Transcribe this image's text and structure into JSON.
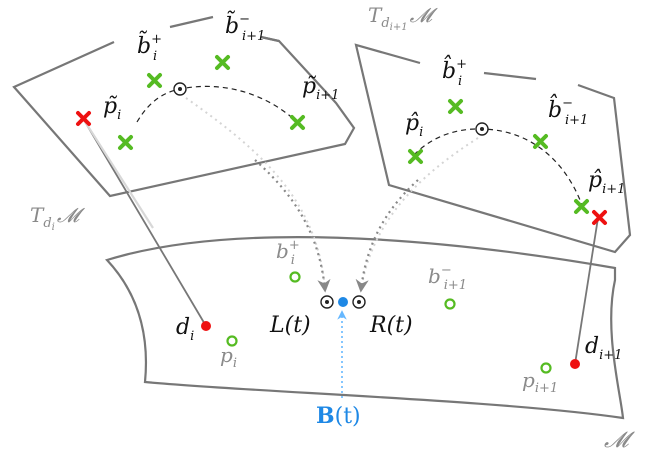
{
  "labels": {
    "b_tilde_plus": {
      "base": "b̃",
      "sub": "i",
      "sup": "+"
    },
    "b_tilde_minus": {
      "base": "b̃",
      "sub": "i+1",
      "sup": "−"
    },
    "p_tilde_i": {
      "base": "p̃",
      "sub": "i"
    },
    "p_tilde_i1": {
      "base": "p̃",
      "sub": "i+1"
    },
    "tangent_left": {
      "T": "T",
      "sub_d": "d",
      "sub_i": "i",
      "M": "𝓜"
    },
    "tangent_right": {
      "T": "T",
      "sub_d": "d",
      "sub_i": "i+1",
      "M": "𝓜"
    },
    "b_hat_plus": {
      "base": "b̂",
      "sub": "i",
      "sup": "+"
    },
    "b_hat_minus": {
      "base": "b̂",
      "sub": "i+1",
      "sup": "−"
    },
    "p_hat_i": {
      "base": "p̂",
      "sub": "i"
    },
    "p_hat_i1": {
      "base": "p̂",
      "sub": "i+1"
    },
    "b_plus": {
      "base": "b",
      "sub": "i",
      "sup": "+"
    },
    "b_minus": {
      "base": "b",
      "sub": "i+1",
      "sup": "−"
    },
    "d_i": {
      "base": "d",
      "sub": "i"
    },
    "d_i1": {
      "base": "d",
      "sub": "i+1"
    },
    "p_i": {
      "base": "p",
      "sub": "i"
    },
    "p_i1": {
      "base": "p",
      "sub": "i+1"
    },
    "L": "L(t)",
    "R": "R(t)",
    "B": {
      "bold": "B",
      "rest": "(t)"
    },
    "manifold": "𝓜"
  },
  "colors": {
    "frame": "#777777",
    "green": "#55bb22",
    "red": "#ee1111",
    "blue": "#1e88e5",
    "gray_text": "#8a8a8a",
    "dotted_gray": "#888888",
    "light_gray": "#c8c8c8",
    "light_blue": "#66b8ff"
  }
}
